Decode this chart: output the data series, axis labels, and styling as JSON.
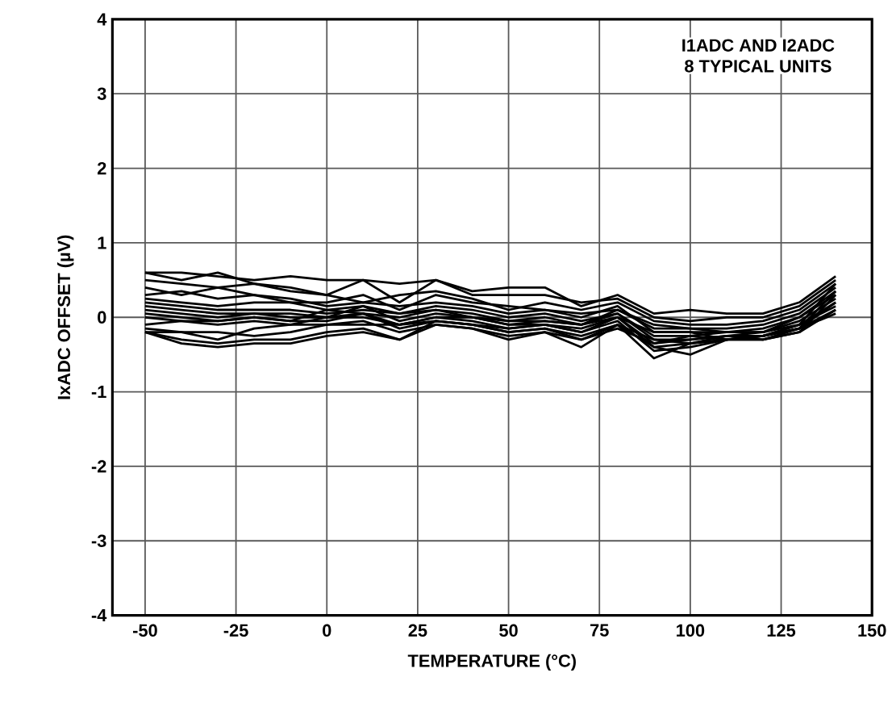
{
  "chart_data": {
    "type": "line",
    "xlabel": "TEMPERATURE (°C)",
    "ylabel": "IxADC OFFSET (µV)",
    "annotations": [
      "I1ADC AND I2ADC",
      "8 TYPICAL UNITS"
    ],
    "x": [
      -50,
      -40,
      -30,
      -20,
      -10,
      0,
      10,
      20,
      30,
      40,
      50,
      60,
      70,
      80,
      90,
      100,
      110,
      120,
      130,
      140
    ],
    "xlim": [
      -59,
      150
    ],
    "ylim": [
      -4,
      4
    ],
    "xticks": [
      -50,
      -25,
      0,
      25,
      50,
      75,
      100,
      125,
      150
    ],
    "yticks": [
      -4,
      -3,
      -2,
      -1,
      0,
      1,
      2,
      3,
      4
    ],
    "grid": true,
    "marker": "none",
    "line_style": "solid",
    "series": [
      {
        "color": "#000000",
        "values": [
          0.6,
          0.6,
          0.55,
          0.5,
          0.55,
          0.5,
          0.5,
          0.45,
          0.5,
          0.35,
          0.4,
          0.4,
          0.15,
          0.3,
          0.05,
          0.1,
          0.05,
          0.05,
          0.2,
          0.55
        ]
      },
      {
        "color": "#000000",
        "values": [
          0.6,
          0.5,
          0.6,
          0.45,
          0.4,
          0.3,
          0.5,
          0.2,
          0.5,
          0.3,
          0.3,
          0.3,
          0.2,
          0.25,
          0,
          -0.05,
          0,
          0,
          0.15,
          0.5
        ]
      },
      {
        "color": "#000000",
        "values": [
          0.5,
          0.45,
          0.4,
          0.45,
          0.35,
          0.3,
          0.2,
          0.3,
          0.35,
          0.25,
          0.1,
          0.2,
          0.1,
          0.2,
          -0.05,
          -0.1,
          -0.1,
          -0.05,
          0.1,
          0.45
        ]
      },
      {
        "color": "#000000",
        "values": [
          0.4,
          0.3,
          0.4,
          0.3,
          0.2,
          0.2,
          0.3,
          0.1,
          0.3,
          0.2,
          0.15,
          0.1,
          0.05,
          0.1,
          -0.1,
          -0.15,
          -0.15,
          -0.1,
          0.05,
          0.4
        ]
      },
      {
        "color": "#000000",
        "values": [
          0.3,
          0.35,
          0.25,
          0.3,
          0.25,
          0.15,
          0.2,
          0.15,
          0.2,
          0.15,
          0.05,
          0.1,
          0,
          0.15,
          -0.2,
          -0.2,
          -0.2,
          -0.15,
          0,
          0.35
        ]
      },
      {
        "color": "#000000",
        "values": [
          0.25,
          0.2,
          0.15,
          0.2,
          0.2,
          0.1,
          0.15,
          0.05,
          0.15,
          0.1,
          0,
          0.05,
          -0.05,
          0.05,
          -0.25,
          -0.25,
          -0.2,
          -0.2,
          0,
          0.3
        ]
      },
      {
        "color": "#000000",
        "values": [
          0.2,
          0.15,
          0.1,
          0.1,
          0.1,
          0.05,
          0.1,
          0.05,
          0.1,
          0.05,
          -0.05,
          0,
          -0.1,
          0.05,
          -0.3,
          -0.3,
          -0.25,
          -0.2,
          -0.05,
          0.25
        ]
      },
      {
        "color": "#000000",
        "values": [
          0.15,
          0.1,
          0.05,
          0.05,
          0.05,
          0,
          0.05,
          0,
          0.1,
          0,
          -0.1,
          -0.05,
          -0.1,
          0,
          -0.35,
          -0.25,
          -0.3,
          -0.25,
          -0.1,
          0.2
        ]
      },
      {
        "color": "#000000",
        "values": [
          0.1,
          0.05,
          0,
          0.05,
          0,
          0,
          0.15,
          -0.05,
          0.05,
          0,
          -0.1,
          -0.1,
          -0.15,
          0,
          -0.4,
          -0.35,
          -0.3,
          -0.25,
          -0.1,
          0.15
        ]
      },
      {
        "color": "#000000",
        "values": [
          0.05,
          0,
          -0.05,
          0,
          -0.05,
          -0.05,
          0.05,
          -0.1,
          0,
          -0.05,
          -0.15,
          -0.1,
          -0.2,
          -0.05,
          -0.45,
          -0.4,
          -0.3,
          -0.3,
          -0.15,
          0.1
        ]
      },
      {
        "color": "#000000",
        "values": [
          0,
          -0.05,
          -0.1,
          -0.05,
          -0.1,
          0,
          0,
          -0.1,
          -0.05,
          -0.1,
          -0.2,
          -0.15,
          -0.25,
          -0.1,
          -0.55,
          -0.35,
          -0.3,
          -0.25,
          -0.15,
          0.05
        ]
      },
      {
        "color": "#000000",
        "values": [
          -0.1,
          -0.05,
          -0.05,
          0,
          -0.05,
          0.1,
          0.05,
          -0.15,
          -0.05,
          -0.1,
          -0.2,
          -0.15,
          -0.3,
          -0.1,
          -0.4,
          -0.5,
          -0.3,
          -0.3,
          -0.2,
          0.1
        ]
      },
      {
        "color": "#000000",
        "values": [
          -0.2,
          -0.2,
          -0.3,
          -0.15,
          -0.1,
          -0.1,
          -0.05,
          -0.2,
          -0.1,
          -0.15,
          -0.25,
          -0.2,
          -0.3,
          -0.15,
          -0.35,
          -0.3,
          -0.25,
          -0.25,
          -0.15,
          0.2
        ]
      },
      {
        "color": "#000000",
        "values": [
          -0.2,
          -0.3,
          -0.35,
          -0.3,
          -0.3,
          -0.2,
          -0.15,
          -0.3,
          -0.1,
          -0.15,
          -0.3,
          -0.2,
          -0.4,
          -0.1,
          -0.3,
          -0.35,
          -0.25,
          -0.3,
          -0.2,
          0.3
        ]
      },
      {
        "color": "#000000",
        "values": [
          -0.2,
          -0.35,
          -0.4,
          -0.35,
          -0.35,
          -0.25,
          -0.2,
          -0.3,
          -0.05,
          -0.1,
          -0.15,
          -0.1,
          -0.2,
          0,
          -0.2,
          -0.2,
          -0.3,
          -0.25,
          -0.15,
          0.35
        ]
      },
      {
        "color": "#000000",
        "values": [
          -0.15,
          -0.2,
          -0.2,
          -0.25,
          -0.2,
          -0.1,
          -0.1,
          -0.1,
          0,
          0,
          -0.05,
          -0.05,
          -0.1,
          0.1,
          -0.15,
          -0.15,
          -0.2,
          -0.2,
          -0.1,
          0.45
        ]
      }
    ]
  }
}
